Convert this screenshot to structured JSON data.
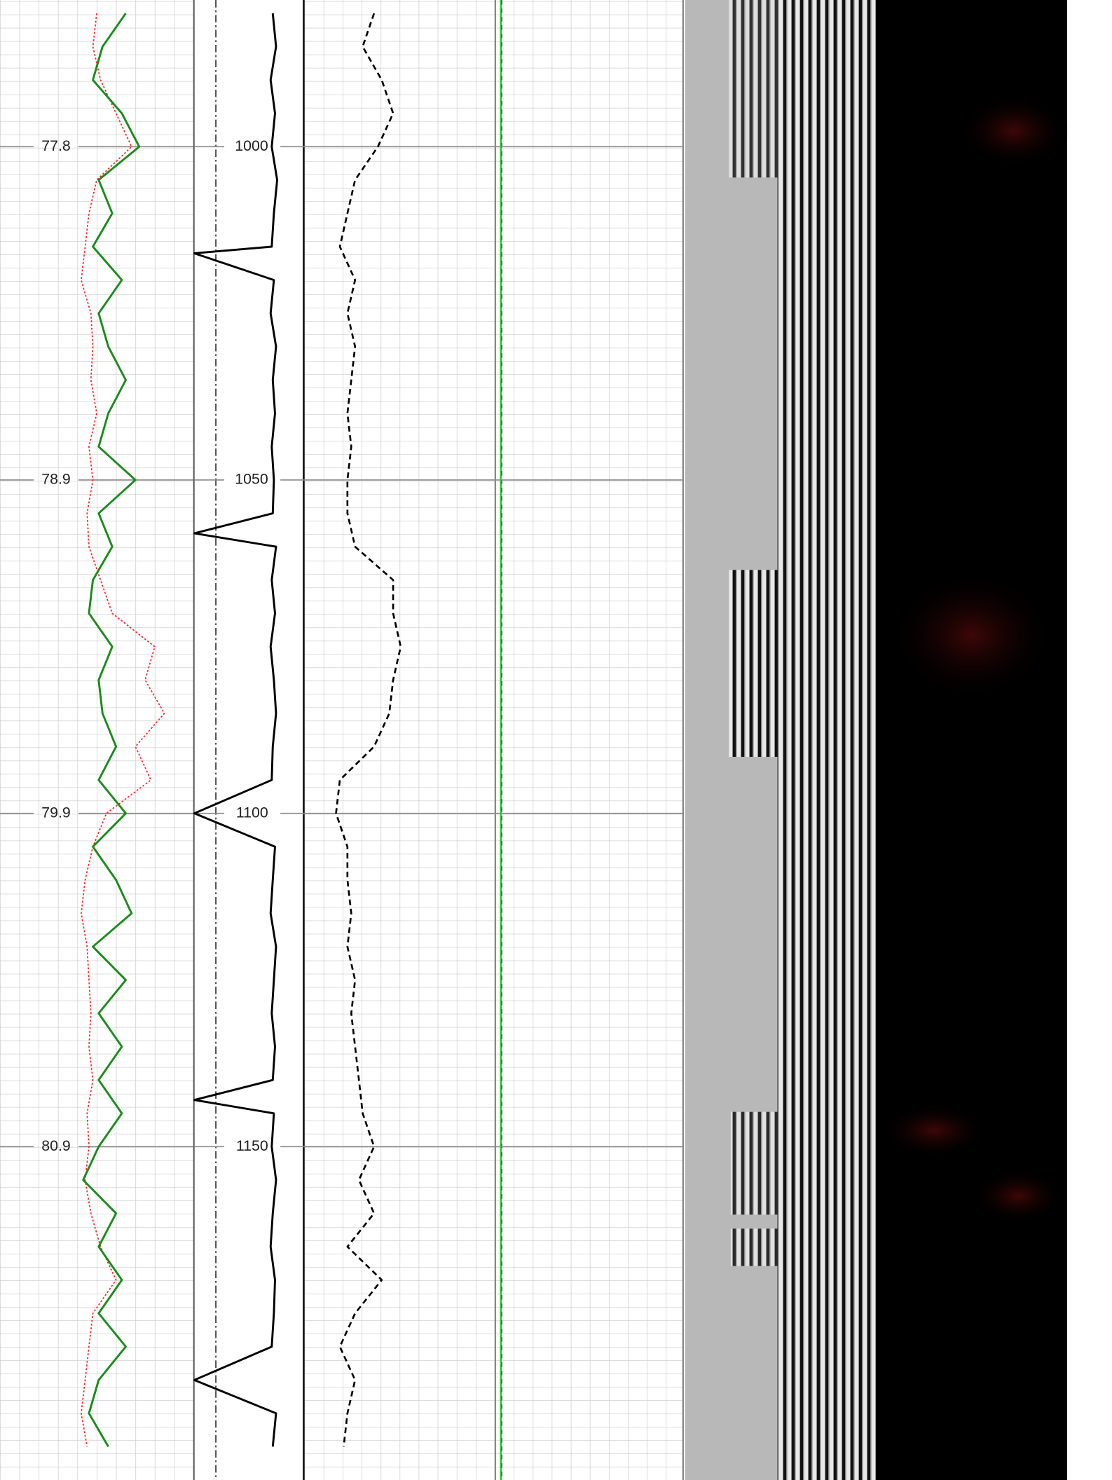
{
  "chart_data": {
    "type": "well-log",
    "ylim": [
      978,
      1200
    ],
    "yticks": [
      1000,
      1050,
      1100,
      1150
    ],
    "left_ticks": [
      {
        "value": 1000,
        "label": "77.8"
      },
      {
        "value": 1050,
        "label": "78.9"
      },
      {
        "value": 1100,
        "label": "79.9"
      },
      {
        "value": 1150,
        "label": "80.9"
      }
    ],
    "x": [
      980,
      985,
      990,
      995,
      1000,
      1005,
      1010,
      1015,
      1020,
      1025,
      1030,
      1035,
      1040,
      1045,
      1050,
      1055,
      1060,
      1065,
      1070,
      1075,
      1080,
      1085,
      1090,
      1095,
      1100,
      1105,
      1110,
      1115,
      1120,
      1125,
      1130,
      1135,
      1140,
      1145,
      1150,
      1155,
      1160,
      1165,
      1170,
      1175,
      1180,
      1185,
      1190,
      1195
    ],
    "tracks": [
      {
        "xlim": [
          0,
          100
        ],
        "series": [
          {
            "color": "#ff2020",
            "style": "dotted",
            "values": [
              50,
              48,
              52,
              60,
              68,
              50,
              46,
              44,
              42,
              47,
              48,
              47,
              50,
              46,
              48,
              45,
              46,
              52,
              58,
              80,
              75,
              85,
              70,
              78,
              55,
              48,
              44,
              42,
              45,
              46,
              47,
              46,
              48,
              45,
              46,
              44,
              47,
              52,
              60,
              48,
              46,
              44,
              42,
              45
            ]
          },
          {
            "color": "#1a8c1a",
            "style": "solid",
            "values": [
              65,
              53,
              48,
              63,
              72,
              51,
              58,
              48,
              63,
              51,
              56,
              65,
              56,
              51,
              70,
              51,
              58,
              48,
              46,
              58,
              51,
              53,
              60,
              51,
              65,
              48,
              60,
              68,
              48,
              65,
              51,
              63,
              51,
              63,
              51,
              43,
              60,
              51,
              63,
              51,
              65,
              51,
              46,
              56
            ]
          }
        ]
      },
      {
        "xlim": [
          0,
          100
        ],
        "series": [
          {
            "color": "#000000",
            "style": "solid",
            "x": [
              980,
              985,
              990,
              995,
              1000,
              1005,
              1010,
              1015,
              1016,
              1020,
              1025,
              1030,
              1035,
              1040,
              1045,
              1050,
              1055,
              1058,
              1060,
              1065,
              1070,
              1075,
              1080,
              1085,
              1090,
              1095,
              1100,
              1105,
              1110,
              1115,
              1120,
              1125,
              1130,
              1135,
              1140,
              1143,
              1145,
              1150,
              1155,
              1160,
              1165,
              1170,
              1175,
              1180,
              1185,
              1190,
              1195
            ],
            "values": [
              73,
              76,
              71,
              75,
              72,
              77,
              74,
              72,
              0,
              74,
              71,
              76,
              73,
              75,
              72,
              74,
              73,
              0,
              76,
              72,
              75,
              71,
              74,
              76,
              73,
              72,
              0,
              75,
              73,
              71,
              76,
              74,
              72,
              75,
              73,
              0,
              74,
              72,
              76,
              73,
              71,
              75,
              74,
              72,
              0,
              76,
              73
            ]
          }
        ]
      },
      {
        "xlim": [
          0,
          100
        ],
        "series": [
          {
            "color": "#000000",
            "style": "dashed",
            "values": [
              19,
              16,
              21,
              24,
              20,
              14,
              12,
              10,
              14,
              12,
              14,
              13,
              12,
              13,
              12,
              12,
              14,
              24,
              24,
              26,
              24,
              23,
              19,
              10,
              9,
              12,
              12,
              13,
              12,
              14,
              13,
              14,
              15,
              16,
              19,
              15,
              19,
              12,
              21,
              14,
              10,
              14,
              12,
              11
            ]
          }
        ]
      }
    ]
  }
}
